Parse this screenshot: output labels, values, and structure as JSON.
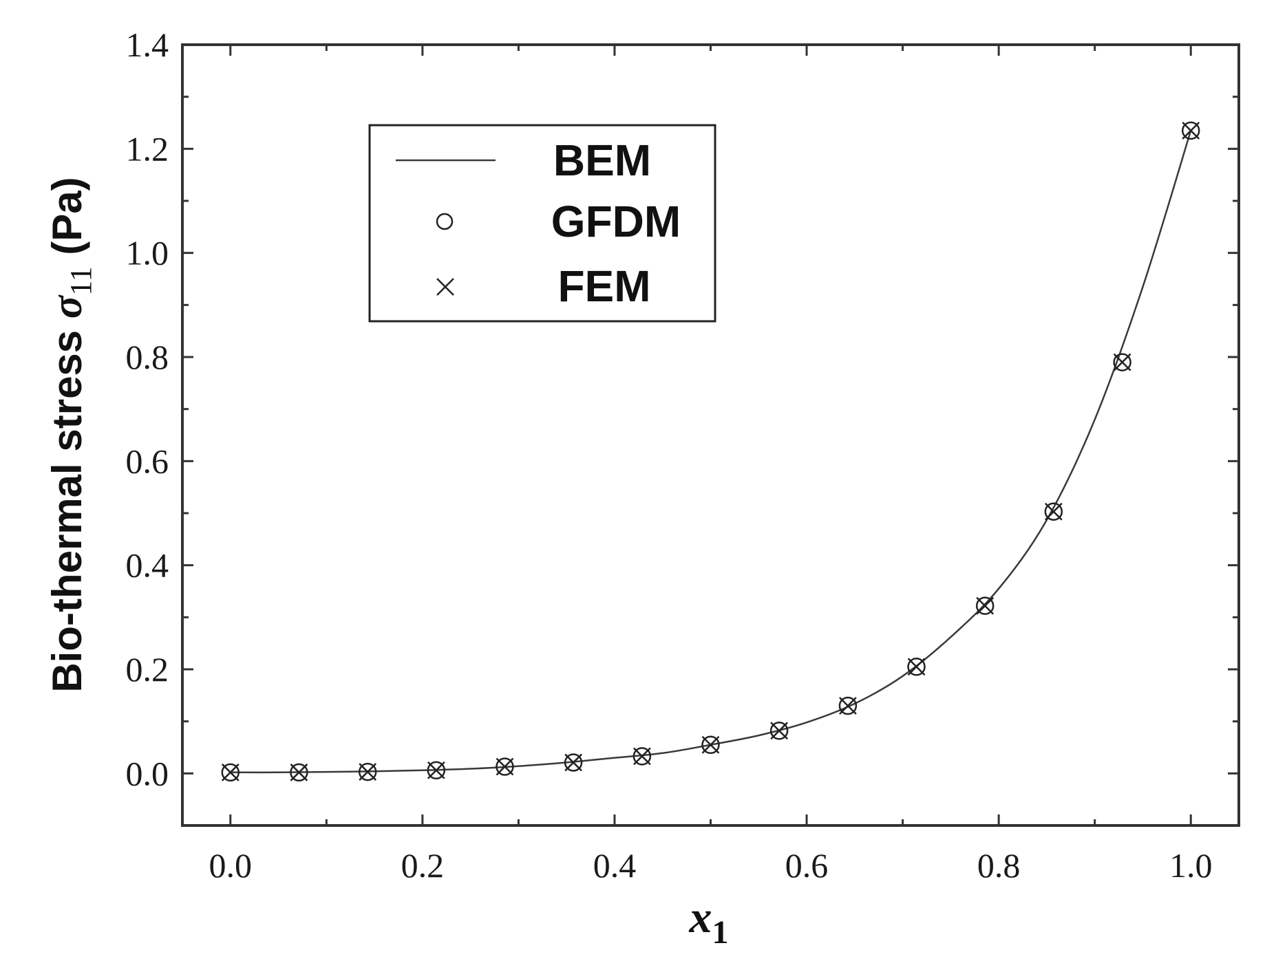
{
  "chart_data": {
    "type": "line",
    "title": "",
    "xlabel": {
      "main": "x",
      "sub": "1"
    },
    "ylabel": {
      "prefix": "Bio-thermal stress ",
      "symbol": "σ",
      "sub": "11",
      "suffix": " (Pa)"
    },
    "xlim": [
      -0.05,
      1.05
    ],
    "ylim": [
      -0.1,
      1.4
    ],
    "xticks": [
      0.0,
      0.2,
      0.4,
      0.6,
      0.8,
      1.0
    ],
    "xtick_labels": [
      "0.0",
      "0.2",
      "0.4",
      "0.6",
      "0.8",
      "1.0"
    ],
    "yticks": [
      0.0,
      0.2,
      0.4,
      0.6,
      0.8,
      1.0,
      1.2,
      1.4
    ],
    "ytick_labels": [
      "0.0",
      "0.2",
      "0.4",
      "0.6",
      "0.8",
      "1.0",
      "1.2",
      "1.4"
    ],
    "grid": false,
    "legend_position": "top-left",
    "series": [
      {
        "name": "BEM",
        "style": "line",
        "x": [
          0.0,
          0.05,
          0.1,
          0.15,
          0.2,
          0.25,
          0.3,
          0.35,
          0.4,
          0.45,
          0.5,
          0.55,
          0.6,
          0.65,
          0.7,
          0.75,
          0.8,
          0.85,
          0.9,
          0.95,
          1.0
        ],
        "y": [
          0.002,
          0.002,
          0.003,
          0.004,
          0.006,
          0.009,
          0.014,
          0.021,
          0.03,
          0.039,
          0.055,
          0.073,
          0.098,
          0.134,
          0.187,
          0.262,
          0.355,
          0.487,
          0.68,
          0.935,
          1.235
        ]
      },
      {
        "name": "GFDM",
        "style": "circle",
        "x": [
          0.0,
          0.0714,
          0.1429,
          0.2143,
          0.2857,
          0.3571,
          0.4286,
          0.5,
          0.5714,
          0.6429,
          0.7143,
          0.7857,
          0.8571,
          0.9286,
          1.0
        ],
        "y": [
          0.002,
          0.002,
          0.003,
          0.006,
          0.013,
          0.021,
          0.033,
          0.055,
          0.082,
          0.13,
          0.205,
          0.322,
          0.503,
          0.79,
          1.235
        ]
      },
      {
        "name": "FEM",
        "style": "cross",
        "x": [
          0.0,
          0.0714,
          0.1429,
          0.2143,
          0.2857,
          0.3571,
          0.4286,
          0.5,
          0.5714,
          0.6429,
          0.7143,
          0.7857,
          0.8571,
          0.9286,
          1.0
        ],
        "y": [
          0.002,
          0.002,
          0.003,
          0.006,
          0.013,
          0.021,
          0.033,
          0.055,
          0.082,
          0.13,
          0.205,
          0.322,
          0.503,
          0.79,
          1.235
        ]
      }
    ]
  }
}
